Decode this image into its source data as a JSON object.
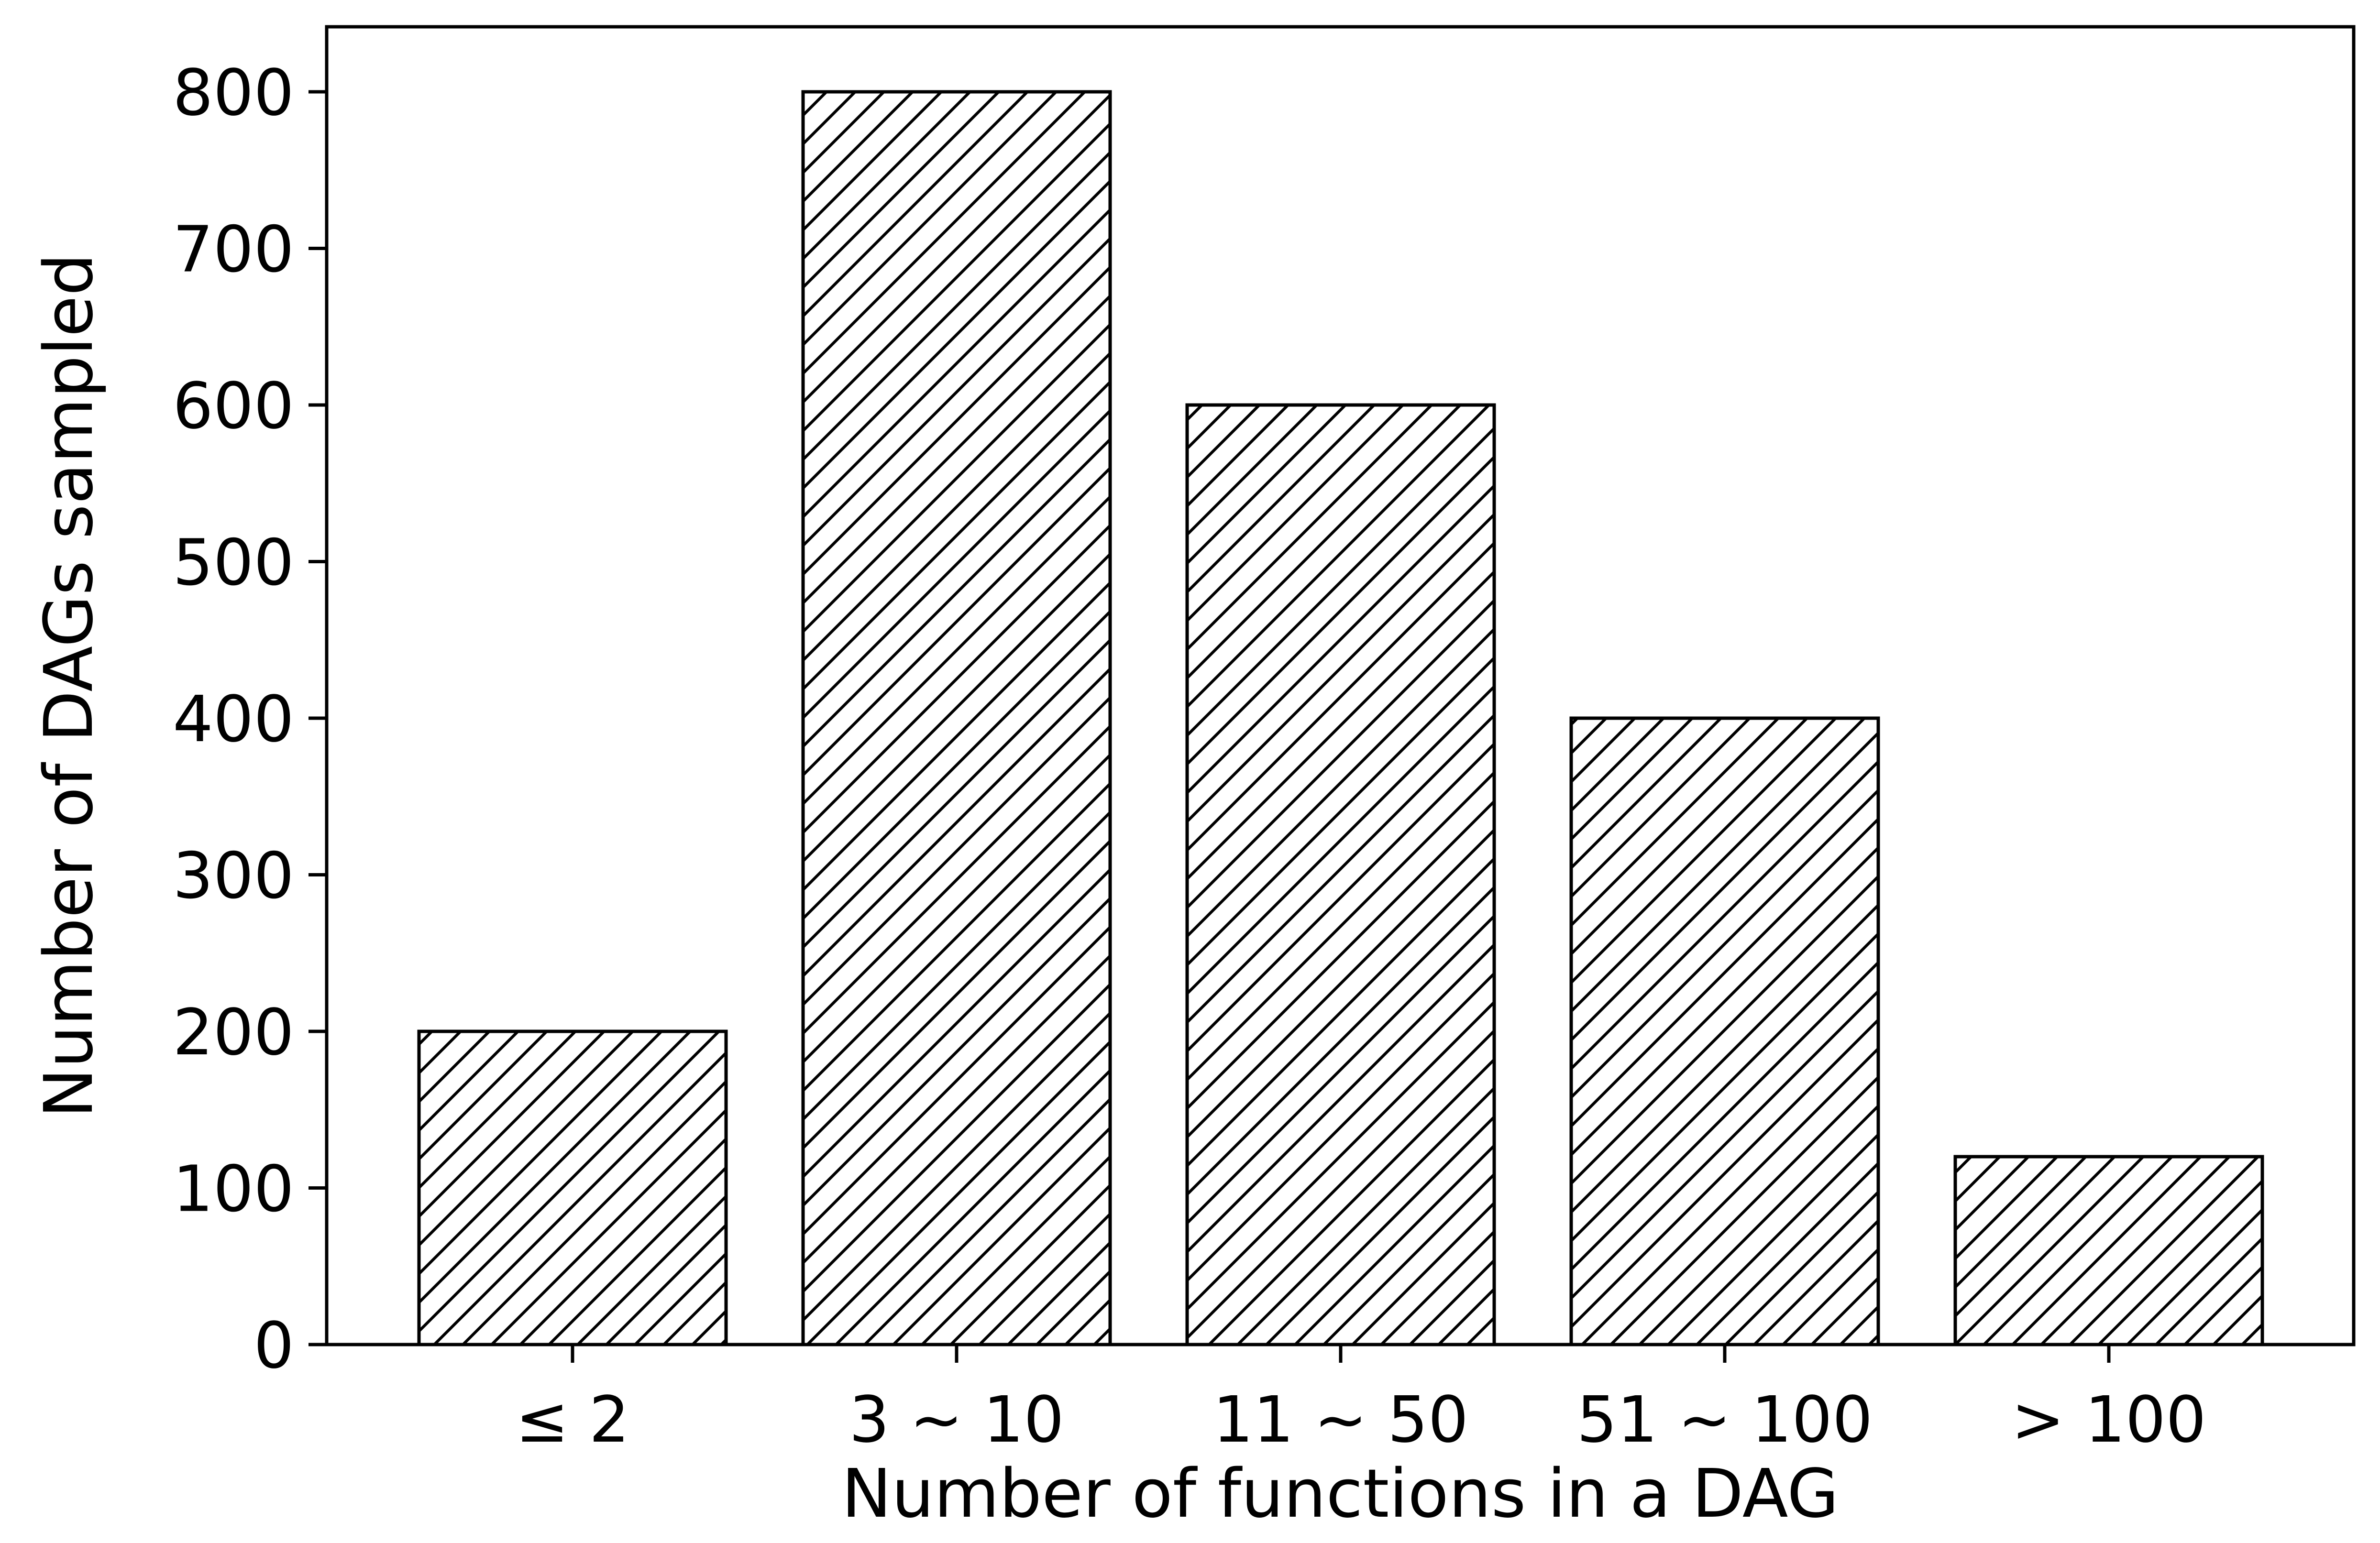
{
  "chart_data": {
    "type": "bar",
    "categories": [
      "≤ 2",
      "3 ~ 10",
      "11 ~ 50",
      "51 ~ 100",
      "> 100"
    ],
    "values": [
      200,
      800,
      600,
      400,
      120
    ],
    "title": "",
    "xlabel": "Number of functions in a DAG",
    "ylabel": "Number of DAGs sampled",
    "ylim": [
      0,
      840
    ],
    "yticks": [
      0,
      100,
      200,
      300,
      400,
      500,
      600,
      700,
      800
    ],
    "grid": false,
    "legend": "none",
    "bar_fill": "#ffffff",
    "bar_edge": "#000000",
    "hatch": "diagonal"
  }
}
